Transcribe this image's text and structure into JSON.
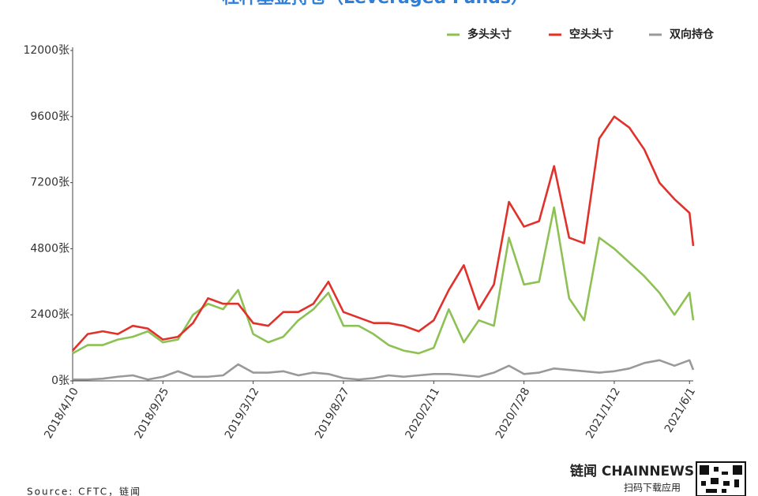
{
  "chart_data": {
    "type": "line",
    "title": "杠杆基金持仓（Leveraged Funds）",
    "source": "Source: CFTC，链闻",
    "brand": "链闻 CHAINNEWS",
    "brand_sub": "扫码下载应用",
    "x": [
      "2018/4/10",
      "2018/5/8",
      "2018/6/5",
      "2018/7/3",
      "2018/7/31",
      "2018/8/28",
      "2018/9/25",
      "2018/10/23",
      "2018/11/20",
      "2018/12/18",
      "2019/1/15",
      "2019/2/12",
      "2019/3/12",
      "2019/4/9",
      "2019/5/7",
      "2019/6/4",
      "2019/7/2",
      "2019/7/30",
      "2019/8/27",
      "2019/9/24",
      "2019/10/22",
      "2019/11/19",
      "2019/12/17",
      "2020/1/14",
      "2020/2/11",
      "2020/3/10",
      "2020/4/7",
      "2020/5/5",
      "2020/6/2",
      "2020/6/30",
      "2020/7/28",
      "2020/8/25",
      "2020/9/22",
      "2020/10/20",
      "2020/11/17",
      "2020/12/15",
      "2021/1/12",
      "2021/2/9",
      "2021/3/9",
      "2021/4/6",
      "2021/5/4",
      "2021/6/1",
      "2021/6/8"
    ],
    "xlim": [
      "2018/4/10",
      "2021/6/8"
    ],
    "xticks": [
      "2018/4/10",
      "2018/9/25",
      "2019/3/12",
      "2019/8/27",
      "2020/2/11",
      "2020/7/28",
      "2021/1/12",
      "2021/6/1"
    ],
    "ylim": [
      0,
      12000
    ],
    "yticks": [
      {
        "value": 0,
        "label": "0张"
      },
      {
        "value": 2400,
        "label": "2400张"
      },
      {
        "value": 4800,
        "label": "4800张"
      },
      {
        "value": 7200,
        "label": "7200张"
      },
      {
        "value": 9600,
        "label": "9600张"
      },
      {
        "value": 12000,
        "label": "12000张"
      }
    ],
    "series": [
      {
        "name": "多头头寸",
        "color": "#8dc153",
        "values": [
          1000,
          1300,
          1300,
          1500,
          1600,
          1800,
          1400,
          1500,
          2400,
          2800,
          2600,
          3300,
          1700,
          1400,
          1600,
          2200,
          2600,
          3200,
          2000,
          2000,
          1700,
          1300,
          1100,
          1000,
          1200,
          2600,
          1400,
          2200,
          2000,
          5200,
          3500,
          3600,
          6300,
          3000,
          2200,
          5200,
          4800,
          4300,
          3800,
          3200,
          2400,
          3200,
          2200
        ]
      },
      {
        "name": "空头头寸",
        "color": "#e0312b",
        "values": [
          1100,
          1700,
          1800,
          1700,
          2000,
          1900,
          1500,
          1600,
          2100,
          3000,
          2800,
          2800,
          2100,
          2000,
          2500,
          2500,
          2800,
          3600,
          2500,
          2300,
          2100,
          2100,
          2000,
          1800,
          2200,
          3300,
          4200,
          2600,
          3500,
          6500,
          5600,
          5800,
          7800,
          5200,
          5000,
          8800,
          9600,
          9200,
          8400,
          7200,
          6600,
          6100,
          4900
        ]
      },
      {
        "name": "双向持仓",
        "color": "#999999",
        "values": [
          50,
          50,
          80,
          150,
          200,
          50,
          150,
          350,
          150,
          150,
          200,
          600,
          300,
          300,
          350,
          200,
          300,
          250,
          100,
          50,
          100,
          200,
          150,
          200,
          250,
          250,
          200,
          150,
          300,
          550,
          250,
          300,
          450,
          400,
          350,
          300,
          350,
          450,
          650,
          750,
          550,
          750,
          400
        ]
      }
    ]
  }
}
